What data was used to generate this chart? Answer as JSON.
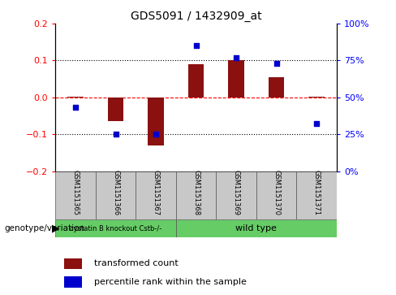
{
  "title": "GDS5091 / 1432909_at",
  "samples": [
    "GSM1151365",
    "GSM1151366",
    "GSM1151367",
    "GSM1151368",
    "GSM1151369",
    "GSM1151370",
    "GSM1151371"
  ],
  "bar_values": [
    0.002,
    -0.065,
    -0.13,
    0.09,
    0.102,
    0.055,
    0.002
  ],
  "percentile_values": [
    43,
    25,
    25,
    85,
    77,
    73,
    32
  ],
  "group1_indices": [
    0,
    1,
    2
  ],
  "group2_indices": [
    3,
    4,
    5,
    6
  ],
  "group1_label": "cystatin B knockout Cstb-/-",
  "group2_label": "wild type",
  "group1_color": "#66CC66",
  "group2_color": "#66CC66",
  "bar_color": "#8B1010",
  "dot_color": "#0000CC",
  "left_ylim": [
    -0.2,
    0.2
  ],
  "left_yticks": [
    -0.2,
    -0.1,
    0.0,
    0.1,
    0.2
  ],
  "right_ylim": [
    0,
    100
  ],
  "right_yticks": [
    0,
    25,
    50,
    75,
    100
  ],
  "right_yticklabels": [
    "0%",
    "25%",
    "50%",
    "75%",
    "100%"
  ],
  "dotted_lines": [
    -0.1,
    0.1
  ],
  "bar_width": 0.4,
  "genotype_label": "genotype/variation",
  "legend_bar_label": "transformed count",
  "legend_dot_label": "percentile rank within the sample",
  "sample_box_color": "#C8C8C8",
  "fig_bg": "#FFFFFF"
}
